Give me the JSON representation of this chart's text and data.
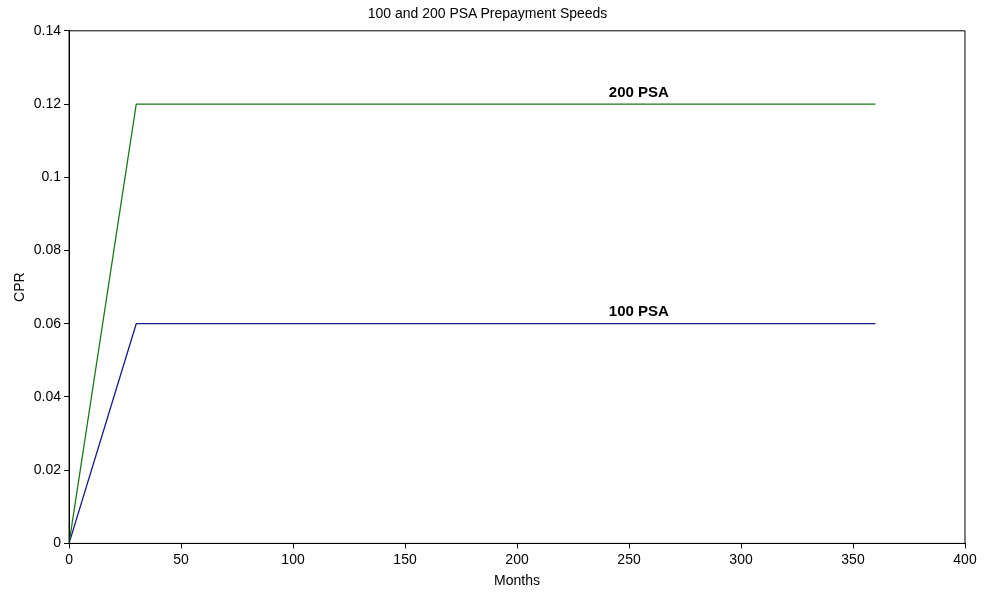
{
  "chart_data": {
    "type": "line",
    "title": "100 and 200 PSA Prepayment Speeds",
    "xlabel": "Months",
    "ylabel": "CPR",
    "xlim": [
      0,
      400
    ],
    "xticks": [
      0,
      50,
      100,
      150,
      200,
      250,
      300,
      350,
      400
    ],
    "ylim": [
      0,
      0.14
    ],
    "yticks": [
      0,
      0.02,
      0.04,
      0.06,
      0.08,
      0.1,
      0.12,
      0.14
    ],
    "grid": false,
    "legend": false,
    "marker": "none",
    "line_style": "solid",
    "series": [
      {
        "name": "200 PSA",
        "color": "#1a7a1a",
        "x": [
          0,
          30,
          360
        ],
        "values": [
          0,
          0.12,
          0.12
        ]
      },
      {
        "name": "100 PSA",
        "color": "#1a1a8a",
        "x": [
          0,
          30,
          360
        ],
        "values": [
          0,
          0.06,
          0.06
        ]
      }
    ]
  }
}
